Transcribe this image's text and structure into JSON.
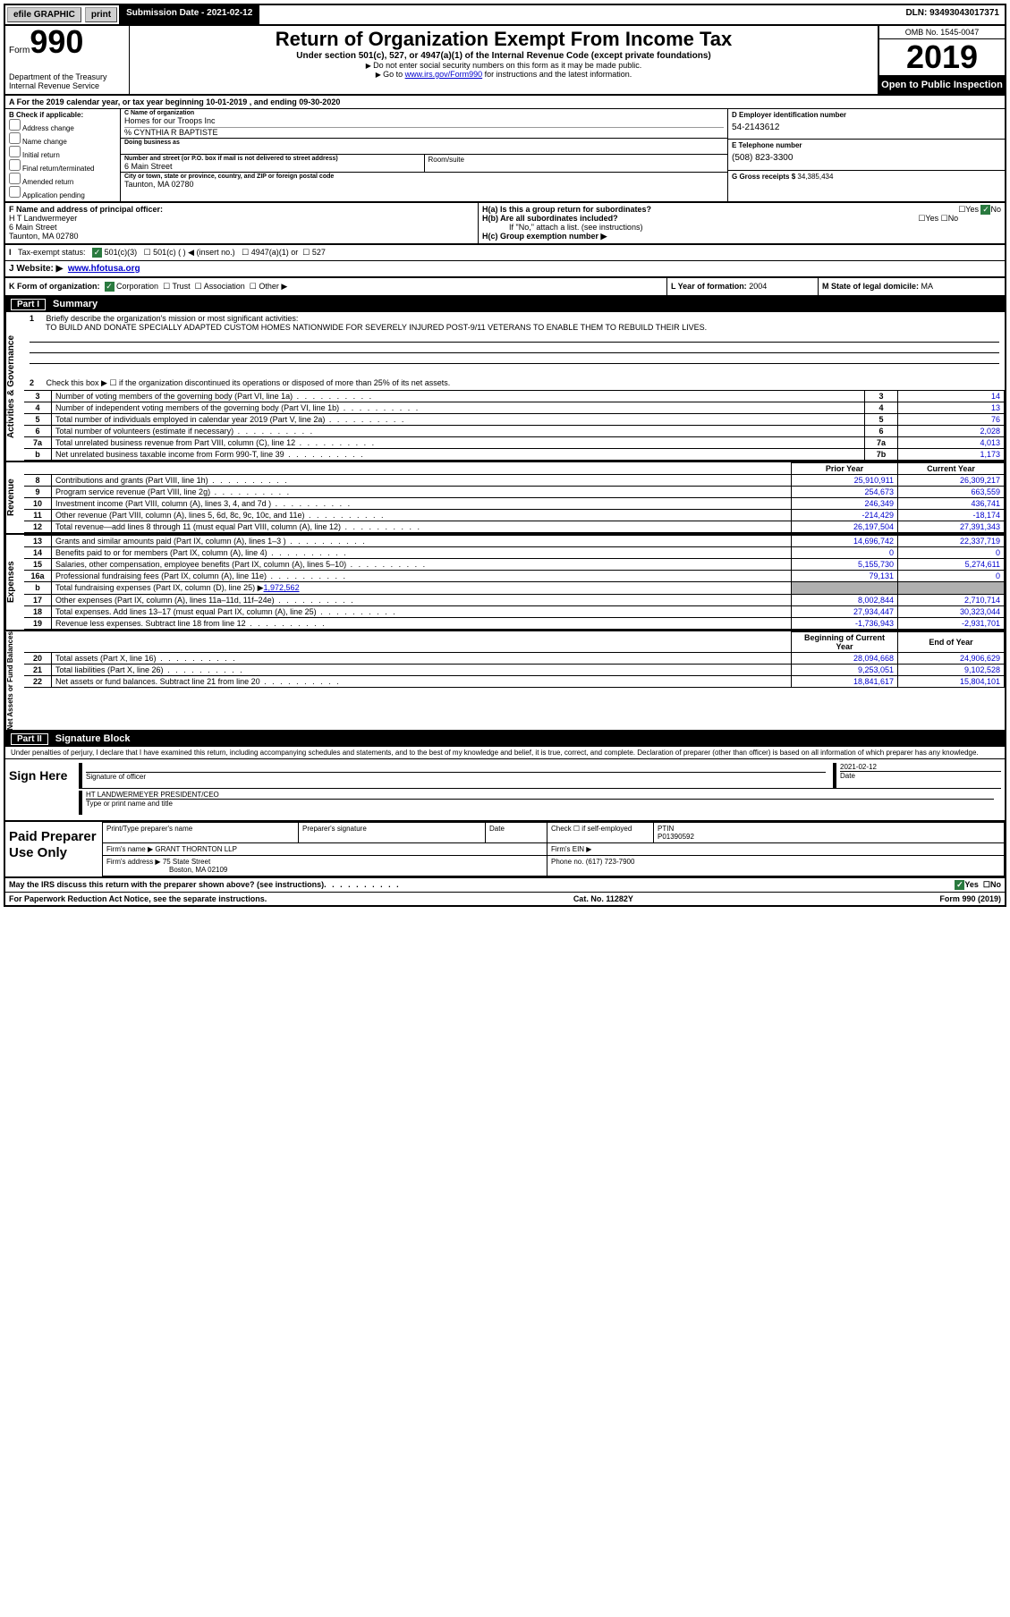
{
  "topbar": {
    "efile": "efile GRAPHIC",
    "print": "print",
    "subdate_label": "Submission Date - ",
    "subdate": "2021-02-12",
    "dln_label": "DLN: ",
    "dln": "93493043017371"
  },
  "header": {
    "form": "Form",
    "num": "990",
    "dept": "Department of the Treasury\nInternal Revenue Service",
    "title": "Return of Organization Exempt From Income Tax",
    "sub": "Under section 501(c), 527, or 4947(a)(1) of the Internal Revenue Code (except private foundations)",
    "instr1": "Do not enter social security numbers on this form as it may be made public.",
    "instr2_pre": "Go to ",
    "instr2_link": "www.irs.gov/Form990",
    "instr2_post": " for instructions and the latest information.",
    "omb": "OMB No. 1545-0047",
    "year": "2019",
    "inspection": "Open to Public Inspection"
  },
  "section_a": "For the 2019 calendar year, or tax year beginning 10-01-2019    , and ending 09-30-2020",
  "b": {
    "label": "B Check if applicable:",
    "items": [
      "Address change",
      "Name change",
      "Initial return",
      "Final return/terminated",
      "Amended return",
      "Application pending"
    ]
  },
  "c": {
    "name_label": "C Name of organization",
    "name": "Homes for our Troops Inc",
    "care_of": "% CYNTHIA R BAPTISTE",
    "dba_label": "Doing business as",
    "street_label": "Number and street (or P.O. box if mail is not delivered to street address)",
    "street": "6 Main Street",
    "room_label": "Room/suite",
    "city_label": "City or town, state or province, country, and ZIP or foreign postal code",
    "city": "Taunton, MA  02780"
  },
  "d": {
    "label": "D Employer identification number",
    "value": "54-2143612"
  },
  "e": {
    "label": "E Telephone number",
    "value": "(508) 823-3300"
  },
  "g": {
    "label": "G Gross receipts $",
    "value": "34,385,434"
  },
  "f": {
    "label": "F  Name and address of principal officer:",
    "name": "H T Landwermeyer",
    "street": "6 Main Street",
    "city": "Taunton, MA  02780"
  },
  "h": {
    "a_label": "H(a)  Is this a group return for subordinates?",
    "a_yes": "Yes",
    "a_no": "No",
    "b_label": "H(b)  Are all subordinates included?",
    "b_note": "If \"No,\" attach a list. (see instructions)",
    "c_label": "H(c)  Group exemption number ▶"
  },
  "i": {
    "label": "Tax-exempt status:",
    "opt1": "501(c)(3)",
    "opt2": "501(c) (   ) ◀ (insert no.)",
    "opt3": "4947(a)(1) or",
    "opt4": "527"
  },
  "j": {
    "label": "J   Website: ▶",
    "value": "www.hfotusa.org"
  },
  "k": {
    "label": "K Form of organization:",
    "corp": "Corporation",
    "trust": "Trust",
    "assoc": "Association",
    "other": "Other ▶"
  },
  "l": {
    "label": "L Year of formation:",
    "value": "2004"
  },
  "m": {
    "label": "M State of legal domicile:",
    "value": "MA"
  },
  "part1": {
    "num": "Part I",
    "title": "Summary"
  },
  "mission": {
    "num": "1",
    "label": "Briefly describe the organization's mission or most significant activities:",
    "text": "TO BUILD AND DONATE SPECIALLY ADAPTED CUSTOM HOMES NATIONWIDE FOR SEVERELY INJURED POST-9/11 VETERANS TO ENABLE THEM TO REBUILD THEIR LIVES."
  },
  "line2": "Check this box ▶ ☐  if the organization discontinued its operations or disposed of more than 25% of its net assets.",
  "sidebars": {
    "ag": "Activities & Governance",
    "rev": "Revenue",
    "exp": "Expenses",
    "net": "Net Assets or Fund Balances"
  },
  "ag_lines": [
    {
      "n": "3",
      "d": "Number of voting members of the governing body (Part VI, line 1a)",
      "b": "3",
      "v": "14"
    },
    {
      "n": "4",
      "d": "Number of independent voting members of the governing body (Part VI, line 1b)",
      "b": "4",
      "v": "13"
    },
    {
      "n": "5",
      "d": "Total number of individuals employed in calendar year 2019 (Part V, line 2a)",
      "b": "5",
      "v": "76"
    },
    {
      "n": "6",
      "d": "Total number of volunteers (estimate if necessary)",
      "b": "6",
      "v": "2,028"
    },
    {
      "n": "7a",
      "d": "Total unrelated business revenue from Part VIII, column (C), line 12",
      "b": "7a",
      "v": "4,013"
    },
    {
      "n": "b",
      "d": "Net unrelated business taxable income from Form 990-T, line 39",
      "b": "7b",
      "v": "1,173"
    }
  ],
  "rev_hdr": {
    "py": "Prior Year",
    "cy": "Current Year"
  },
  "rev_lines": [
    {
      "n": "8",
      "d": "Contributions and grants (Part VIII, line 1h)",
      "py": "25,910,911",
      "cy": "26,309,217"
    },
    {
      "n": "9",
      "d": "Program service revenue (Part VIII, line 2g)",
      "py": "254,673",
      "cy": "663,559"
    },
    {
      "n": "10",
      "d": "Investment income (Part VIII, column (A), lines 3, 4, and 7d )",
      "py": "246,349",
      "cy": "436,741"
    },
    {
      "n": "11",
      "d": "Other revenue (Part VIII, column (A), lines 5, 6d, 8c, 9c, 10c, and 11e)",
      "py": "-214,429",
      "cy": "-18,174"
    },
    {
      "n": "12",
      "d": "Total revenue—add lines 8 through 11 (must equal Part VIII, column (A), line 12)",
      "py": "26,197,504",
      "cy": "27,391,343"
    }
  ],
  "exp_lines": [
    {
      "n": "13",
      "d": "Grants and similar amounts paid (Part IX, column (A), lines 1–3 )",
      "py": "14,696,742",
      "cy": "22,337,719"
    },
    {
      "n": "14",
      "d": "Benefits paid to or for members (Part IX, column (A), line 4)",
      "py": "0",
      "cy": "0"
    },
    {
      "n": "15",
      "d": "Salaries, other compensation, employee benefits (Part IX, column (A), lines 5–10)",
      "py": "5,155,730",
      "cy": "5,274,611"
    },
    {
      "n": "16a",
      "d": "Professional fundraising fees (Part IX, column (A), line 11e)",
      "py": "79,131",
      "cy": "0"
    },
    {
      "n": "b",
      "d": "Total fundraising expenses (Part IX, column (D), line 25) ▶",
      "link": "1,972,562",
      "py": "",
      "cy": "",
      "shaded": true
    },
    {
      "n": "17",
      "d": "Other expenses (Part IX, column (A), lines 11a–11d, 11f–24e)",
      "py": "8,002,844",
      "cy": "2,710,714"
    },
    {
      "n": "18",
      "d": "Total expenses. Add lines 13–17 (must equal Part IX, column (A), line 25)",
      "py": "27,934,447",
      "cy": "30,323,044"
    },
    {
      "n": "19",
      "d": "Revenue less expenses. Subtract line 18 from line 12",
      "py": "-1,736,943",
      "cy": "-2,931,701"
    }
  ],
  "net_hdr": {
    "by": "Beginning of Current Year",
    "ey": "End of Year"
  },
  "net_lines": [
    {
      "n": "20",
      "d": "Total assets (Part X, line 16)",
      "py": "28,094,668",
      "cy": "24,906,629"
    },
    {
      "n": "21",
      "d": "Total liabilities (Part X, line 26)",
      "py": "9,253,051",
      "cy": "9,102,528"
    },
    {
      "n": "22",
      "d": "Net assets or fund balances. Subtract line 21 from line 20",
      "py": "18,841,617",
      "cy": "15,804,101"
    }
  ],
  "part2": {
    "num": "Part II",
    "title": "Signature Block"
  },
  "sig": {
    "intro": "Under penalties of perjury, I declare that I have examined this return, including accompanying schedules and statements, and to the best of my knowledge and belief, it is true, correct, and complete. Declaration of preparer (other than officer) is based on all information of which preparer has any knowledge.",
    "here": "Sign Here",
    "officer_label": "Signature of officer",
    "date_label": "Date",
    "date": "2021-02-12",
    "name": "HT LANDWERMEYER PRESIDENT/CEO",
    "name_label": "Type or print name and title"
  },
  "paid": {
    "title": "Paid Preparer Use Only",
    "name_label": "Print/Type preparer's name",
    "sig_label": "Preparer's signature",
    "date_label": "Date",
    "check_label": "Check ☐ if self-employed",
    "ptin_label": "PTIN",
    "ptin": "P01390592",
    "firm_name_label": "Firm's name   ▶",
    "firm_name": "GRANT THORNTON LLP",
    "firm_ein_label": "Firm's EIN ▶",
    "firm_addr_label": "Firm's address ▶",
    "firm_addr1": "75 State Street",
    "firm_addr2": "Boston, MA  02109",
    "firm_phone_label": "Phone no.",
    "firm_phone": "(617) 723-7900"
  },
  "discuss": {
    "q": "May the IRS discuss this return with the preparer shown above? (see instructions)",
    "yes": "Yes",
    "no": "No"
  },
  "bottom": {
    "paperwork": "For Paperwork Reduction Act Notice, see the separate instructions.",
    "cat": "Cat. No. 11282Y",
    "form": "Form 990 (2019)"
  }
}
